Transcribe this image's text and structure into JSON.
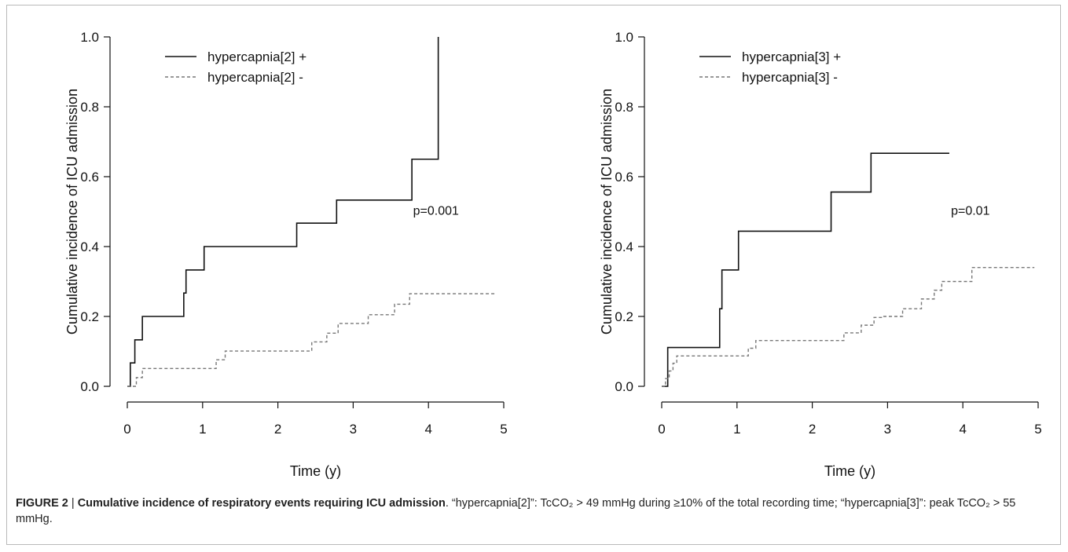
{
  "chart_data": [
    {
      "type": "line",
      "subtype": "step",
      "xlabel": "Time (y)",
      "ylabel": "Cumulative incidence of ICU admission",
      "xlim": [
        0,
        5
      ],
      "ylim": [
        0,
        1
      ],
      "xticks": [
        "0",
        "1",
        "2",
        "3",
        "4",
        "5"
      ],
      "yticks": [
        "0.0",
        "0.2",
        "0.4",
        "0.6",
        "0.8",
        "1.0"
      ],
      "grid": false,
      "legend_position": "top-left",
      "annotation": "p=0.001",
      "series": [
        {
          "name": "hypercapnia[2] +",
          "line_style": "solid",
          "color": "#111111",
          "x": [
            0,
            0.04,
            0.1,
            0.2,
            0.75,
            0.78,
            1.02,
            2.25,
            2.78,
            3.78,
            4.13,
            4.13
          ],
          "y": [
            0,
            0.067,
            0.133,
            0.2,
            0.267,
            0.333,
            0.4,
            0.467,
            0.533,
            0.65,
            0.65,
            1.0
          ]
        },
        {
          "name": "hypercapnia[2] -",
          "line_style": "dashed",
          "color": "#777777",
          "x": [
            0,
            0.12,
            0.2,
            1.18,
            1.3,
            2.45,
            2.65,
            2.8,
            3.2,
            3.55,
            3.75,
            4.9
          ],
          "y": [
            0,
            0.025,
            0.051,
            0.076,
            0.101,
            0.127,
            0.152,
            0.18,
            0.205,
            0.235,
            0.265,
            0.265
          ]
        }
      ]
    },
    {
      "type": "line",
      "subtype": "step",
      "xlabel": "Time (y)",
      "ylabel": "Cumulative incidence of ICU admission",
      "xlim": [
        0,
        5
      ],
      "ylim": [
        0,
        1
      ],
      "xticks": [
        "0",
        "1",
        "2",
        "3",
        "4",
        "5"
      ],
      "yticks": [
        "0.0",
        "0.2",
        "0.4",
        "0.6",
        "0.8",
        "1.0"
      ],
      "grid": false,
      "legend_position": "top-left",
      "annotation": "p=0.01",
      "series": [
        {
          "name": "hypercapnia[3] +",
          "line_style": "solid",
          "color": "#111111",
          "x": [
            0,
            0.08,
            0.77,
            0.8,
            1.02,
            2.25,
            2.78,
            3.82
          ],
          "y": [
            0,
            0.111,
            0.222,
            0.333,
            0.444,
            0.556,
            0.667,
            0.667
          ]
        },
        {
          "name": "hypercapnia[3] -",
          "line_style": "dashed",
          "color": "#777777",
          "x": [
            0,
            0.05,
            0.1,
            0.15,
            0.2,
            1.15,
            1.25,
            2.42,
            2.65,
            2.82,
            2.95,
            3.2,
            3.45,
            3.62,
            3.72,
            4.12,
            4.95
          ],
          "y": [
            0,
            0.022,
            0.044,
            0.066,
            0.087,
            0.109,
            0.131,
            0.153,
            0.175,
            0.197,
            0.2,
            0.222,
            0.25,
            0.275,
            0.3,
            0.34,
            0.34
          ]
        }
      ]
    }
  ],
  "caption": {
    "figure_label": "FIGURE 2",
    "separator": " | ",
    "title": "Cumulative incidence of respiratory events requiring ICU admission",
    "text": ". “hypercapnia[2]”: TcCO₂ > 49 mmHg during ≥10% of the total recording time; “hypercapnia[3]”: peak TcCO₂ > 55 mmHg."
  }
}
